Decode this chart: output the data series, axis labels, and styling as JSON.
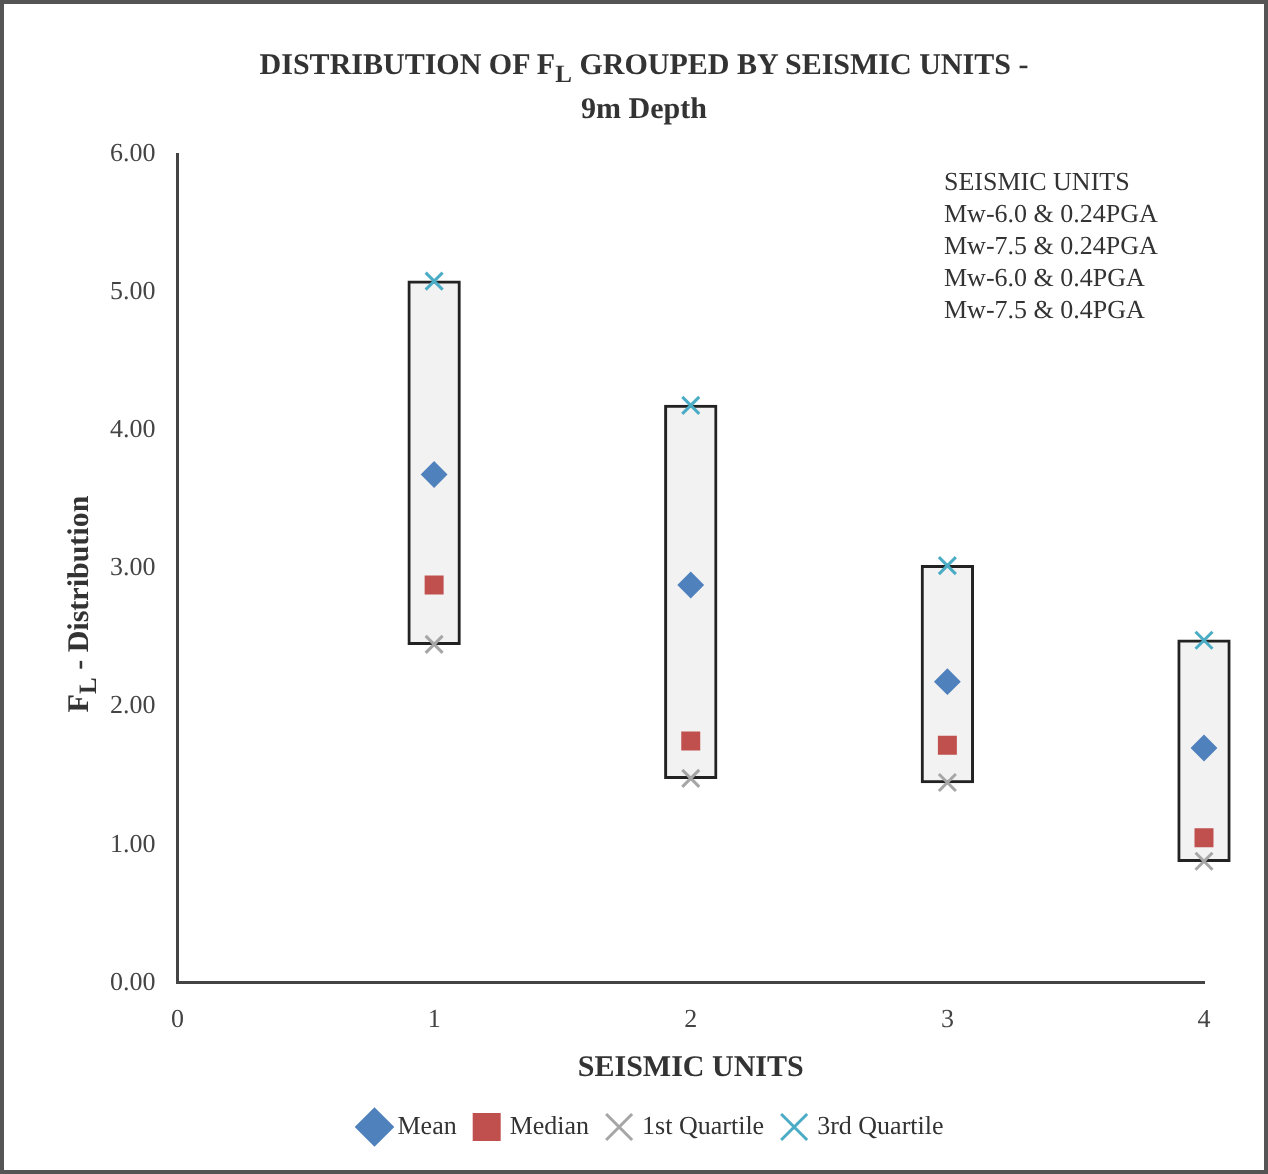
{
  "chart_data": {
    "type": "scatter",
    "title": "DISTRIBUTION OF F$_{L}$ GROUPED BY SEISMIC UNITS - 9m Depth",
    "xlabel": "SEISMIC UNITS",
    "ylabel": "F$_{L}$ - Distribution",
    "xlim": [
      0,
      4
    ],
    "xticks": [
      0,
      1,
      2,
      3,
      4
    ],
    "ylim": [
      0,
      6
    ],
    "yticks": [
      {
        "value": 0,
        "label": "0.00"
      },
      {
        "value": 1,
        "label": "1.00"
      },
      {
        "value": 2,
        "label": "2.00"
      },
      {
        "value": 3,
        "label": "3.00"
      },
      {
        "value": 4,
        "label": "4.00"
      },
      {
        "value": 5,
        "label": "5.00"
      },
      {
        "value": 6,
        "label": "6.00"
      }
    ],
    "x": [
      1,
      2,
      3,
      4
    ],
    "series": [
      {
        "type": "bar",
        "color": "#f2f2f2",
        "base": [
          2.45,
          1.48,
          1.45,
          0.88
        ],
        "values": [
          2.63,
          2.7,
          1.57,
          1.6
        ]
      },
      {
        "name": "Mean",
        "color": "#4f81bd",
        "marker": "diamond",
        "values": [
          3.68,
          2.88,
          2.18,
          1.7
        ]
      },
      {
        "name": "Median",
        "color": "#c0504d",
        "marker": "square",
        "values": [
          2.88,
          1.75,
          1.72,
          1.05
        ]
      },
      {
        "name": "1st Quartile",
        "color": "#a6a6a6",
        "marker": "cross",
        "values": [
          2.45,
          1.48,
          1.45,
          0.88
        ]
      },
      {
        "name": "3rd Quartile",
        "color": "#4bacc6",
        "marker": "cross",
        "values": [
          5.08,
          4.18,
          3.02,
          2.48
        ]
      }
    ],
    "annotations": [
      "SEISMIC UNITS",
      "Mw-6.0 & 0.24PGA",
      "Mw-7.5 & 0.24PGA",
      "Mw-6.0 & 0.4PGA",
      "Mw-7.5 & 0.4PGA"
    ],
    "legend": "bottom",
    "grid": false
  }
}
